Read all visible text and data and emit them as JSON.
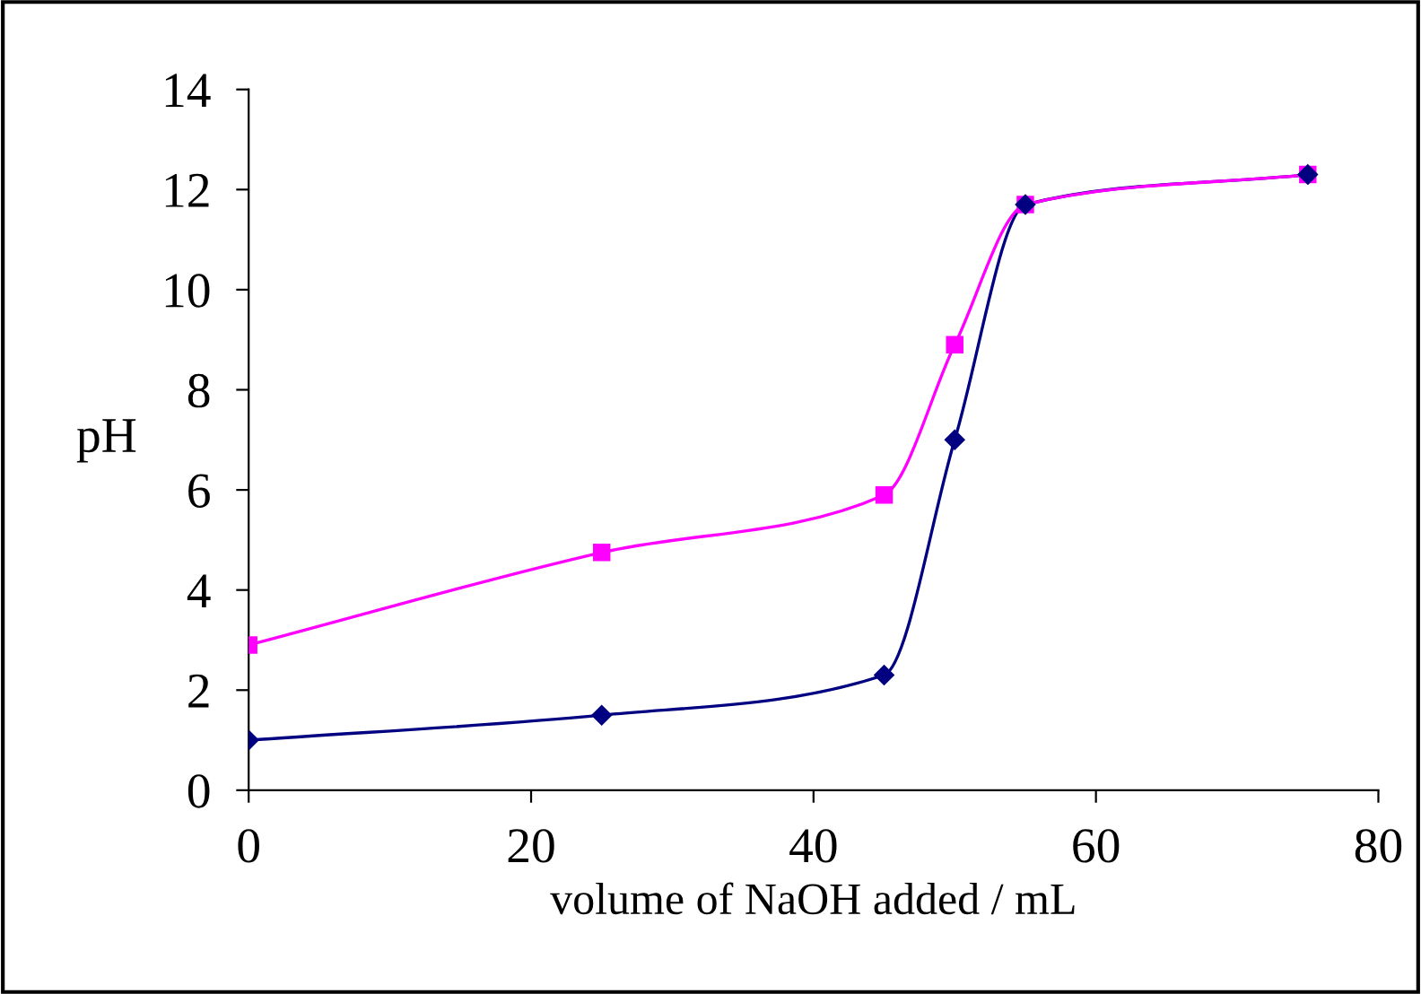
{
  "chart_data": {
    "type": "line",
    "xlabel": "volume of NaOH added / mL",
    "ylabel": "pH",
    "xlim": [
      0,
      80
    ],
    "xticks": [
      0,
      20,
      40,
      60,
      80
    ],
    "ylim": [
      0,
      14
    ],
    "yticks": [
      0,
      2,
      4,
      6,
      8,
      10,
      12,
      14
    ],
    "grid": false,
    "series": [
      {
        "color": "#000080",
        "marker": "diamond",
        "x": [
          0,
          25,
          45,
          50,
          55,
          75
        ],
        "values": [
          1.0,
          1.5,
          2.3,
          7.0,
          11.7,
          12.3
        ]
      },
      {
        "color": "#ff00ff",
        "marker": "square",
        "x": [
          0,
          25,
          45,
          50,
          55,
          75
        ],
        "values": [
          2.9,
          4.75,
          5.9,
          8.9,
          11.7,
          12.3
        ]
      }
    ]
  }
}
